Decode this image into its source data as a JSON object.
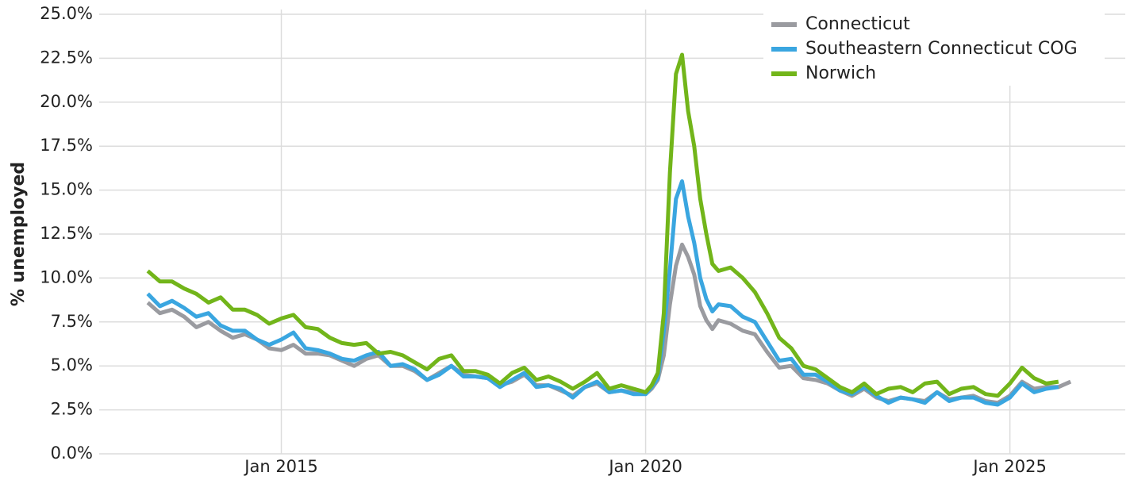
{
  "chart_data": {
    "type": "line",
    "ylabel": "% unemployed",
    "x": [
      "2013-03",
      "2013-05",
      "2013-07",
      "2013-09",
      "2013-11",
      "2014-01",
      "2014-03",
      "2014-05",
      "2014-07",
      "2014-09",
      "2014-11",
      "2015-01",
      "2015-03",
      "2015-05",
      "2015-07",
      "2015-09",
      "2015-11",
      "2016-01",
      "2016-03",
      "2016-05",
      "2016-07",
      "2016-09",
      "2016-11",
      "2017-01",
      "2017-03",
      "2017-05",
      "2017-07",
      "2017-09",
      "2017-11",
      "2018-01",
      "2018-03",
      "2018-05",
      "2018-07",
      "2018-09",
      "2018-11",
      "2019-01",
      "2019-03",
      "2019-05",
      "2019-07",
      "2019-09",
      "2019-11",
      "2020-01",
      "2020-02",
      "2020-03",
      "2020-04",
      "2020-05",
      "2020-06",
      "2020-07",
      "2020-08",
      "2020-09",
      "2020-10",
      "2020-11",
      "2020-12",
      "2021-01",
      "2021-03",
      "2021-05",
      "2021-07",
      "2021-09",
      "2021-11",
      "2022-01",
      "2022-03",
      "2022-05",
      "2022-07",
      "2022-09",
      "2022-11",
      "2023-01",
      "2023-03",
      "2023-05",
      "2023-07",
      "2023-09",
      "2023-11",
      "2024-01",
      "2024-03",
      "2024-05",
      "2024-07",
      "2024-09",
      "2024-11",
      "2025-01",
      "2025-03",
      "2025-05",
      "2025-07",
      "2025-09",
      "2025-11"
    ],
    "series": [
      {
        "name": "Connecticut",
        "color": "#9a9ba0",
        "values": [
          8.6,
          8.0,
          8.2,
          7.8,
          7.2,
          7.5,
          7.0,
          6.6,
          6.8,
          6.5,
          6.0,
          5.9,
          6.2,
          5.7,
          5.7,
          5.6,
          5.3,
          5.0,
          5.4,
          5.6,
          5.0,
          5.0,
          4.7,
          4.2,
          4.6,
          5.0,
          4.5,
          4.4,
          4.3,
          3.9,
          4.1,
          4.5,
          3.9,
          3.9,
          3.6,
          3.3,
          3.8,
          4.0,
          3.5,
          3.6,
          3.5,
          3.4,
          3.7,
          4.2,
          5.6,
          8.5,
          10.7,
          11.9,
          11.2,
          10.2,
          8.4,
          7.6,
          7.1,
          7.6,
          7.4,
          7.0,
          6.8,
          5.8,
          4.9,
          5.0,
          4.3,
          4.2,
          4.0,
          3.6,
          3.3,
          3.7,
          3.2,
          3.0,
          3.2,
          3.1,
          3.0,
          3.5,
          3.1,
          3.2,
          3.3,
          3.0,
          2.9,
          3.3,
          4.1,
          3.7,
          3.8,
          3.8,
          4.1
        ]
      },
      {
        "name": "Southeastern Connecticut COG",
        "color": "#3aa6e0",
        "values": [
          9.1,
          8.4,
          8.7,
          8.3,
          7.8,
          8.0,
          7.3,
          7.0,
          7.0,
          6.5,
          6.2,
          6.5,
          6.9,
          6.0,
          5.9,
          5.7,
          5.4,
          5.3,
          5.6,
          5.8,
          5.0,
          5.1,
          4.8,
          4.2,
          4.5,
          5.0,
          4.4,
          4.4,
          4.3,
          3.8,
          4.2,
          4.6,
          3.8,
          3.9,
          3.7,
          3.2,
          3.8,
          4.1,
          3.5,
          3.6,
          3.4,
          3.4,
          3.8,
          4.3,
          7.0,
          10.5,
          14.5,
          15.5,
          13.5,
          12.0,
          10.0,
          8.8,
          8.1,
          8.5,
          8.4,
          7.8,
          7.5,
          6.4,
          5.3,
          5.4,
          4.5,
          4.5,
          4.1,
          3.6,
          3.4,
          3.8,
          3.3,
          2.9,
          3.2,
          3.1,
          2.9,
          3.5,
          3.0,
          3.2,
          3.2,
          2.9,
          2.8,
          3.2,
          4.0,
          3.5,
          3.7,
          3.8,
          null
        ]
      },
      {
        "name": "Norwich",
        "color": "#72b51a",
        "values": [
          10.4,
          9.8,
          9.8,
          9.4,
          9.1,
          8.6,
          8.9,
          8.2,
          8.2,
          7.9,
          7.4,
          7.7,
          7.9,
          7.2,
          7.1,
          6.6,
          6.3,
          6.2,
          6.3,
          5.7,
          5.8,
          5.6,
          5.2,
          4.8,
          5.4,
          5.6,
          4.7,
          4.7,
          4.5,
          4.0,
          4.6,
          4.9,
          4.2,
          4.4,
          4.1,
          3.7,
          4.1,
          4.6,
          3.7,
          3.9,
          3.7,
          3.5,
          3.9,
          4.6,
          8.0,
          16.0,
          21.6,
          22.7,
          19.5,
          17.5,
          14.5,
          12.5,
          10.8,
          10.4,
          10.6,
          10.0,
          9.2,
          8.0,
          6.6,
          6.0,
          5.0,
          4.8,
          4.3,
          3.8,
          3.5,
          4.0,
          3.4,
          3.7,
          3.8,
          3.5,
          4.0,
          4.1,
          3.4,
          3.7,
          3.8,
          3.4,
          3.3,
          4.0,
          4.9,
          4.3,
          4.0,
          4.1,
          null
        ]
      }
    ],
    "xlim": [
      "2012-07",
      "2026-08"
    ],
    "xticks": [
      {
        "value": "2015-01",
        "label": "Jan 2015"
      },
      {
        "value": "2020-01",
        "label": "Jan 2020"
      },
      {
        "value": "2025-01",
        "label": "Jan 2025"
      }
    ],
    "ylim": [
      0,
      25
    ],
    "yticks": [
      {
        "value": 0,
        "label": "0.0%"
      },
      {
        "value": 2.5,
        "label": "2.5%"
      },
      {
        "value": 5,
        "label": "5.0%"
      },
      {
        "value": 7.5,
        "label": "7.5%"
      },
      {
        "value": 10,
        "label": "10.0%"
      },
      {
        "value": 12.5,
        "label": "12.5%"
      },
      {
        "value": 15,
        "label": "15.0%"
      },
      {
        "value": 17.5,
        "label": "17.5%"
      },
      {
        "value": 20,
        "label": "20.0%"
      },
      {
        "value": 22.5,
        "label": "22.5%"
      },
      {
        "value": 25,
        "label": "25.0%"
      }
    ],
    "grid": true,
    "legend": "top-right"
  }
}
